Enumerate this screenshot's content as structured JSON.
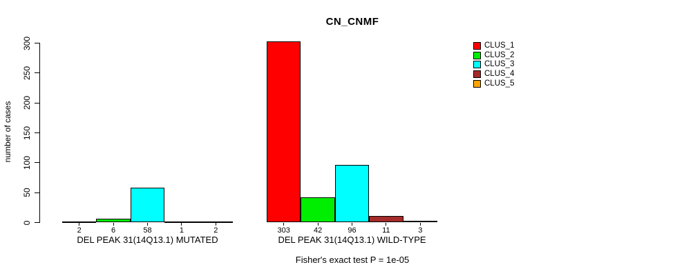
{
  "chart_data": {
    "type": "bar",
    "title": "CN_CNMF",
    "ylabel": "number of cases",
    "xlabel": "",
    "ylim": [
      0,
      300
    ],
    "yticks": [
      0,
      50,
      100,
      150,
      200,
      250,
      300
    ],
    "grid": false,
    "legend_position": "right",
    "categories": [
      "DEL PEAK 31(14Q13.1) MUTATED",
      "DEL PEAK 31(14Q13.1) WILD-TYPE"
    ],
    "series": [
      {
        "name": "CLUS_1",
        "color": "#FF0000",
        "values": [
          2,
          303
        ]
      },
      {
        "name": "CLUS_2",
        "color": "#00EE00",
        "values": [
          6,
          42
        ]
      },
      {
        "name": "CLUS_3",
        "color": "#00FFFF",
        "values": [
          58,
          96
        ]
      },
      {
        "name": "CLUS_4",
        "color": "#A52A2A",
        "values": [
          1,
          11
        ]
      },
      {
        "name": "CLUS_5",
        "color": "#FFA500",
        "values": [
          2,
          3
        ]
      }
    ],
    "bar_value_labels": [
      [
        "2",
        "6",
        "58",
        "1",
        "2"
      ],
      [
        "303",
        "42",
        "96",
        "11",
        "3"
      ]
    ],
    "footnote": "Fisher's exact test P = 1e-05"
  }
}
